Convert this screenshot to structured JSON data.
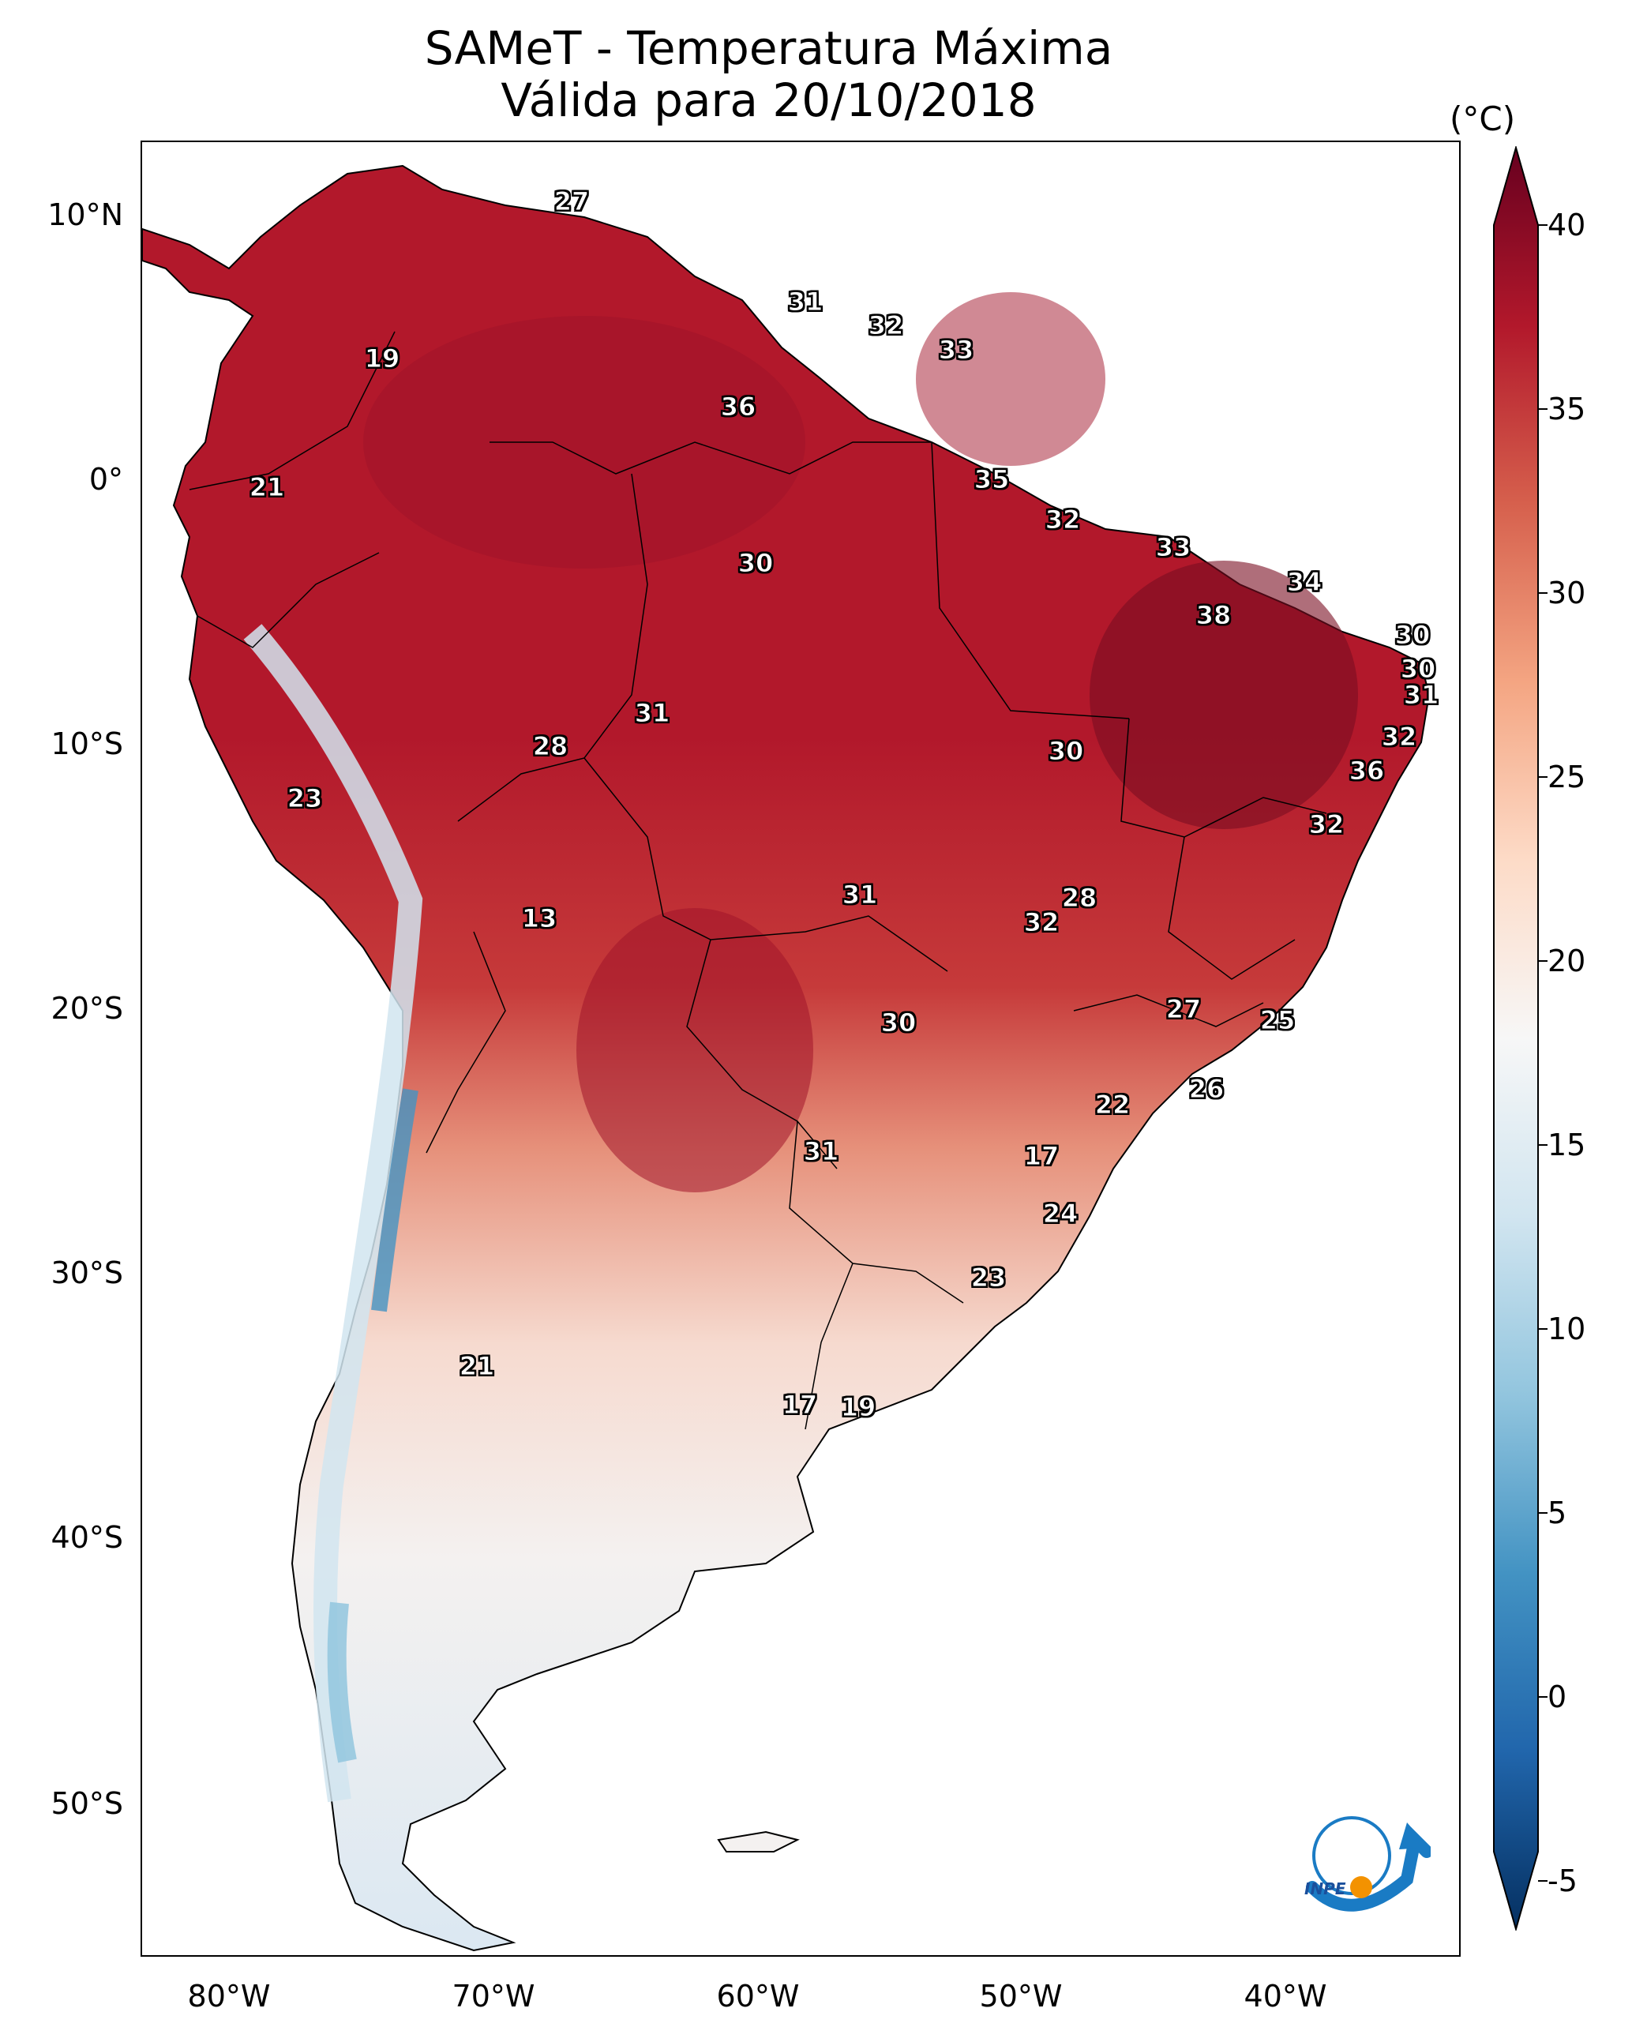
{
  "header": {
    "title_line1": "SAMeT - Temperatura Máxima",
    "title_line2": "Válida para 20/10/2018"
  },
  "axes": {
    "y_labels": [
      "10°N",
      "0°",
      "10°S",
      "20°S",
      "30°S",
      "40°S",
      "50°S"
    ],
    "x_labels": [
      "80°W",
      "70°W",
      "60°W",
      "50°W",
      "40°W"
    ]
  },
  "colorbar": {
    "unit": "(°C)",
    "labels": [
      "40",
      "35",
      "30",
      "25",
      "20",
      "15",
      "10",
      "5",
      "0",
      "-5"
    ],
    "colors": [
      "#67001f",
      "#b2182b",
      "#d6604d",
      "#f4a582",
      "#fddbc7",
      "#f7f7f7",
      "#d1e5f0",
      "#92c5de",
      "#4393c3",
      "#2166ac",
      "#053061"
    ]
  },
  "contour_labels": [
    "27",
    "31",
    "32",
    "33",
    "19",
    "36",
    "35",
    "21",
    "32",
    "33",
    "30",
    "34",
    "38",
    "30",
    "30",
    "31",
    "31",
    "28",
    "30",
    "32",
    "23",
    "36",
    "32",
    "13",
    "31",
    "28",
    "32",
    "27",
    "25",
    "30",
    "26",
    "22",
    "31",
    "17",
    "24",
    "23",
    "21",
    "17",
    "19"
  ],
  "logo": {
    "text": "INPE"
  }
}
